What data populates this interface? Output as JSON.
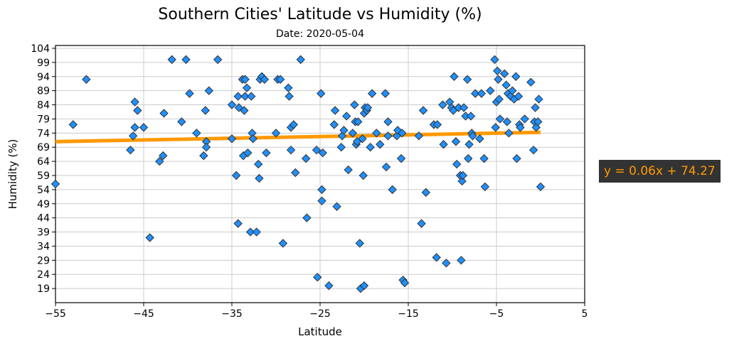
{
  "chart_data": {
    "type": "scatter",
    "title": "Southern Cities' Latitude vs Humidity (%)",
    "subtitle": "Date: 2020-05-04",
    "xlabel": "Latitude",
    "ylabel": "Humidity (%)",
    "xlim": [
      -55,
      5
    ],
    "ylim": [
      14,
      105
    ],
    "xticks": [
      -55,
      -45,
      -35,
      -25,
      -15,
      -5,
      5
    ],
    "yticks": [
      19,
      24,
      29,
      34,
      39,
      44,
      49,
      54,
      59,
      64,
      69,
      74,
      79,
      84,
      89,
      94,
      99,
      104
    ],
    "grid": true,
    "regression": {
      "slope": 0.06,
      "intercept": 74.27,
      "equation": "y = 0.06x + 74.27",
      "x_range": [
        -55,
        0
      ]
    },
    "colors": {
      "marker_fill": "#1e90ff",
      "marker_edge": "#333333",
      "line": "#ff9900",
      "annot_bg": "#333333",
      "annot_text": "#ff9900"
    },
    "points": [
      [
        -55,
        56
      ],
      [
        -53,
        77
      ],
      [
        -51.5,
        93
      ],
      [
        -46.5,
        68
      ],
      [
        -46.2,
        73
      ],
      [
        -46,
        85
      ],
      [
        -46,
        76
      ],
      [
        -45.7,
        82
      ],
      [
        -45,
        76
      ],
      [
        -44.3,
        37
      ],
      [
        -43.2,
        64
      ],
      [
        -42.8,
        66
      ],
      [
        -42.7,
        81
      ],
      [
        -41.8,
        100
      ],
      [
        -40.7,
        78
      ],
      [
        -40.2,
        100
      ],
      [
        -39.8,
        88
      ],
      [
        -39,
        74
      ],
      [
        -38.2,
        66
      ],
      [
        -38,
        82
      ],
      [
        -37.9,
        71
      ],
      [
        -37.9,
        69
      ],
      [
        -37.6,
        89
      ],
      [
        -36.6,
        100
      ],
      [
        -35,
        84
      ],
      [
        -35,
        72
      ],
      [
        -34.5,
        59
      ],
      [
        -34.3,
        87
      ],
      [
        -34.3,
        42
      ],
      [
        -34.2,
        83
      ],
      [
        -33.8,
        93
      ],
      [
        -33.7,
        66
      ],
      [
        -33.6,
        82
      ],
      [
        -33.5,
        87
      ],
      [
        -33.5,
        93
      ],
      [
        -33.3,
        90
      ],
      [
        -33.2,
        67
      ],
      [
        -32.9,
        39
      ],
      [
        -32.8,
        87
      ],
      [
        -32.7,
        74
      ],
      [
        -32.6,
        72
      ],
      [
        -32.2,
        39
      ],
      [
        -32,
        63
      ],
      [
        -31.9,
        58
      ],
      [
        -31.8,
        93
      ],
      [
        -31.6,
        94
      ],
      [
        -31.3,
        93
      ],
      [
        -31.1,
        67
      ],
      [
        -30,
        74
      ],
      [
        -29.8,
        93
      ],
      [
        -29.5,
        93
      ],
      [
        -29.2,
        35
      ],
      [
        -28.6,
        90
      ],
      [
        -28.5,
        87
      ],
      [
        -28.3,
        68
      ],
      [
        -28.3,
        76
      ],
      [
        -28,
        77
      ],
      [
        -27.8,
        60
      ],
      [
        -27.2,
        100
      ],
      [
        -26.6,
        65
      ],
      [
        -26.5,
        44
      ],
      [
        -25.4,
        68
      ],
      [
        -25.3,
        23
      ],
      [
        -24.9,
        88
      ],
      [
        -24.8,
        54
      ],
      [
        -24.8,
        50
      ],
      [
        -24.7,
        67
      ],
      [
        -24,
        20
      ],
      [
        -23.4,
        77
      ],
      [
        -23.3,
        82
      ],
      [
        -23.1,
        48
      ],
      [
        -22.6,
        69
      ],
      [
        -22.5,
        73
      ],
      [
        -22.3,
        75
      ],
      [
        -22,
        80
      ],
      [
        -21.8,
        61
      ],
      [
        -21.3,
        74
      ],
      [
        -21.1,
        84
      ],
      [
        -21,
        78
      ],
      [
        -20.9,
        70
      ],
      [
        -20.8,
        71
      ],
      [
        -20.7,
        78
      ],
      [
        -20.5,
        35
      ],
      [
        -20.4,
        19
      ],
      [
        -20.2,
        72
      ],
      [
        -20.1,
        59
      ],
      [
        -20,
        20
      ],
      [
        -20,
        81
      ],
      [
        -19.9,
        83
      ],
      [
        -19.7,
        82
      ],
      [
        -19.6,
        83
      ],
      [
        -19.3,
        69
      ],
      [
        -19.1,
        88
      ],
      [
        -18.6,
        74
      ],
      [
        -18.2,
        70
      ],
      [
        -17.6,
        88
      ],
      [
        -17.5,
        62
      ],
      [
        -17.3,
        73
      ],
      [
        -17.3,
        78
      ],
      [
        -16.8,
        54
      ],
      [
        -16.3,
        73
      ],
      [
        -16.2,
        75
      ],
      [
        -15.8,
        65
      ],
      [
        -15.7,
        74
      ],
      [
        -15.6,
        22
      ],
      [
        -15.4,
        21
      ],
      [
        -13.8,
        73
      ],
      [
        -13.5,
        42
      ],
      [
        -13.3,
        82
      ],
      [
        -13,
        53
      ],
      [
        -12.1,
        77
      ],
      [
        -11.8,
        30
      ],
      [
        -11.7,
        77
      ],
      [
        -11.1,
        84
      ],
      [
        -11,
        70
      ],
      [
        -10.7,
        28
      ],
      [
        -10.3,
        85
      ],
      [
        -10.1,
        83
      ],
      [
        -9.9,
        82
      ],
      [
        -9.8,
        94
      ],
      [
        -9.6,
        71
      ],
      [
        -9.5,
        63
      ],
      [
        -9.3,
        83
      ],
      [
        -9.1,
        59
      ],
      [
        -9,
        29
      ],
      [
        -8.9,
        57
      ],
      [
        -8.8,
        59
      ],
      [
        -8.7,
        83
      ],
      [
        -8.5,
        80
      ],
      [
        -8.3,
        93
      ],
      [
        -8.2,
        65
      ],
      [
        -8.1,
        70
      ],
      [
        -7.9,
        80
      ],
      [
        -7.8,
        74
      ],
      [
        -7.7,
        73
      ],
      [
        -7.4,
        88
      ],
      [
        -6.9,
        72
      ],
      [
        -6.7,
        88
      ],
      [
        -6.4,
        65
      ],
      [
        -6.3,
        55
      ],
      [
        -5.7,
        89
      ],
      [
        -5.2,
        100
      ],
      [
        -5.1,
        76
      ],
      [
        -5,
        85
      ],
      [
        -4.9,
        96
      ],
      [
        -4.8,
        93
      ],
      [
        -4.7,
        86
      ],
      [
        -4.6,
        79
      ],
      [
        -4.1,
        95
      ],
      [
        -3.9,
        91
      ],
      [
        -3.8,
        78
      ],
      [
        -3.7,
        88
      ],
      [
        -3.6,
        74
      ],
      [
        -3.4,
        87
      ],
      [
        -3.2,
        89
      ],
      [
        -3,
        86
      ],
      [
        -2.8,
        94
      ],
      [
        -2.7,
        65
      ],
      [
        -2.5,
        87
      ],
      [
        -2.4,
        77
      ],
      [
        -2.3,
        76
      ],
      [
        -1.8,
        79
      ],
      [
        -1.1,
        92
      ],
      [
        -0.8,
        68
      ],
      [
        -0.7,
        78
      ],
      [
        -0.6,
        83
      ],
      [
        -0.5,
        76
      ],
      [
        -0.3,
        78
      ],
      [
        -0.2,
        86
      ],
      [
        0,
        55
      ]
    ]
  }
}
